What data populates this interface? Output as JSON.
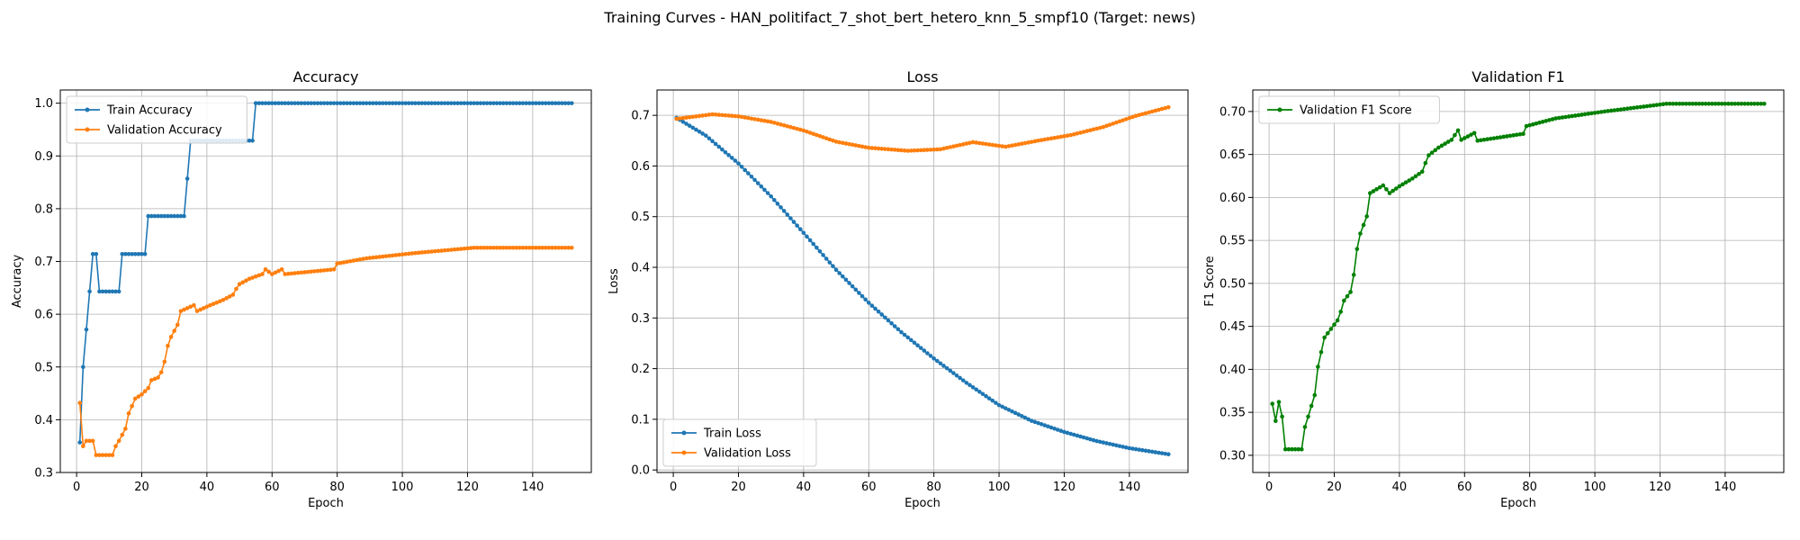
{
  "suptitle": "Training Curves - HAN_politifact_7_shot_bert_hetero_knn_5_smpf10 (Target: news)",
  "colors": {
    "blue": "#1f77b4",
    "orange": "#ff7f0e",
    "green": "#008000",
    "grid": "#b0b0b0"
  },
  "chart_data": [
    {
      "type": "line",
      "title": "Accuracy",
      "xlabel": "Epoch",
      "ylabel": "Accuracy",
      "xlim": [
        -5,
        158
      ],
      "ylim": [
        0.3,
        1.025
      ],
      "xticks": [
        0,
        20,
        40,
        60,
        80,
        100,
        120,
        140
      ],
      "yticks": [
        0.3,
        0.4,
        0.5,
        0.6,
        0.7,
        0.8,
        0.9,
        1.0
      ],
      "grid": true,
      "legend_position": "upper-left",
      "series": [
        {
          "name": "Train Accuracy",
          "color": "#1f77b4",
          "segments": [
            [
              1,
              0.357
            ],
            [
              2,
              0.5
            ],
            [
              3,
              0.571
            ],
            [
              4,
              0.643
            ],
            [
              5,
              0.714
            ],
            [
              6,
              0.714
            ],
            [
              7,
              0.643
            ],
            [
              13,
              0.643
            ],
            [
              14,
              0.714
            ],
            [
              21,
              0.714
            ],
            [
              22,
              0.786
            ],
            [
              33,
              0.786
            ],
            [
              34,
              0.857
            ],
            [
              35,
              0.929
            ],
            [
              54,
              0.929
            ],
            [
              55,
              1.0
            ],
            [
              152,
              1.0
            ]
          ]
        },
        {
          "name": "Validation Accuracy",
          "color": "#ff7f0e",
          "segments": [
            [
              1,
              0.432
            ],
            [
              2,
              0.35
            ],
            [
              3,
              0.36
            ],
            [
              5,
              0.36
            ],
            [
              6,
              0.333
            ],
            [
              11,
              0.333
            ],
            [
              12,
              0.35
            ],
            [
              13,
              0.36
            ],
            [
              15,
              0.383
            ],
            [
              16,
              0.412
            ],
            [
              18,
              0.44
            ],
            [
              20,
              0.448
            ],
            [
              22,
              0.46
            ],
            [
              23,
              0.475
            ],
            [
              25,
              0.48
            ],
            [
              26,
              0.49
            ],
            [
              27,
              0.51
            ],
            [
              28,
              0.54
            ],
            [
              29,
              0.557
            ],
            [
              31,
              0.58
            ],
            [
              32,
              0.606
            ],
            [
              36,
              0.617
            ],
            [
              37,
              0.606
            ],
            [
              41,
              0.617
            ],
            [
              45,
              0.627
            ],
            [
              48,
              0.637
            ],
            [
              49,
              0.648
            ],
            [
              50,
              0.657
            ],
            [
              53,
              0.667
            ],
            [
              57,
              0.676
            ],
            [
              58,
              0.685
            ],
            [
              60,
              0.676
            ],
            [
              63,
              0.685
            ],
            [
              64,
              0.676
            ],
            [
              79,
              0.685
            ],
            [
              80,
              0.696
            ],
            [
              89,
              0.706
            ],
            [
              104,
              0.716
            ],
            [
              122,
              0.726
            ],
            [
              152,
              0.726
            ]
          ]
        }
      ]
    },
    {
      "type": "line",
      "title": "Loss",
      "xlabel": "Epoch",
      "ylabel": "Loss",
      "xlim": [
        -5,
        158
      ],
      "ylim": [
        -0.005,
        0.75
      ],
      "xticks": [
        0,
        20,
        40,
        60,
        80,
        100,
        120,
        140
      ],
      "yticks": [
        0.0,
        0.1,
        0.2,
        0.3,
        0.4,
        0.5,
        0.6,
        0.7
      ],
      "grid": true,
      "legend_position": "lower-left",
      "series": [
        {
          "name": "Train Loss",
          "color": "#1f77b4",
          "segments": [
            [
              1,
              0.695
            ],
            [
              10,
              0.66
            ],
            [
              20,
              0.605
            ],
            [
              30,
              0.54
            ],
            [
              40,
              0.468
            ],
            [
              50,
              0.395
            ],
            [
              60,
              0.33
            ],
            [
              70,
              0.272
            ],
            [
              80,
              0.22
            ],
            [
              90,
              0.172
            ],
            [
              100,
              0.128
            ],
            [
              110,
              0.097
            ],
            [
              120,
              0.075
            ],
            [
              130,
              0.057
            ],
            [
              140,
              0.043
            ],
            [
              152,
              0.031
            ]
          ]
        },
        {
          "name": "Validation Loss",
          "color": "#ff7f0e",
          "segments": [
            [
              1,
              0.693
            ],
            [
              12,
              0.702
            ],
            [
              20,
              0.698
            ],
            [
              30,
              0.687
            ],
            [
              40,
              0.67
            ],
            [
              50,
              0.648
            ],
            [
              60,
              0.636
            ],
            [
              72,
              0.63
            ],
            [
              82,
              0.633
            ],
            [
              92,
              0.647
            ],
            [
              102,
              0.638
            ],
            [
              112,
              0.65
            ],
            [
              122,
              0.661
            ],
            [
              132,
              0.677
            ],
            [
              142,
              0.699
            ],
            [
              152,
              0.716
            ]
          ]
        }
      ]
    },
    {
      "type": "line",
      "title": "Validation F1",
      "xlabel": "Epoch",
      "ylabel": "F1 Score",
      "xlim": [
        -5,
        158
      ],
      "ylim": [
        0.28,
        0.725
      ],
      "xticks": [
        0,
        20,
        40,
        60,
        80,
        100,
        120,
        140
      ],
      "yticks": [
        0.3,
        0.35,
        0.4,
        0.45,
        0.5,
        0.55,
        0.6,
        0.65,
        0.7
      ],
      "grid": true,
      "legend_position": "upper-left",
      "series": [
        {
          "name": "Validation F1 Score",
          "color": "#008000",
          "segments": [
            [
              1,
              0.36
            ],
            [
              2,
              0.34
            ],
            [
              3,
              0.362
            ],
            [
              4,
              0.345
            ],
            [
              5,
              0.307
            ],
            [
              10,
              0.307
            ],
            [
              11,
              0.333
            ],
            [
              12,
              0.345
            ],
            [
              14,
              0.37
            ],
            [
              15,
              0.403
            ],
            [
              17,
              0.437
            ],
            [
              19,
              0.447
            ],
            [
              21,
              0.457
            ],
            [
              22,
              0.467
            ],
            [
              23,
              0.48
            ],
            [
              25,
              0.49
            ],
            [
              26,
              0.51
            ],
            [
              27,
              0.54
            ],
            [
              28,
              0.558
            ],
            [
              30,
              0.578
            ],
            [
              31,
              0.605
            ],
            [
              35,
              0.614
            ],
            [
              37,
              0.605
            ],
            [
              40,
              0.613
            ],
            [
              44,
              0.622
            ],
            [
              47,
              0.63
            ],
            [
              48,
              0.64
            ],
            [
              49,
              0.649
            ],
            [
              52,
              0.658
            ],
            [
              56,
              0.667
            ],
            [
              58,
              0.678
            ],
            [
              59,
              0.667
            ],
            [
              63,
              0.675
            ],
            [
              64,
              0.666
            ],
            [
              78,
              0.674
            ],
            [
              79,
              0.683
            ],
            [
              88,
              0.692
            ],
            [
              103,
              0.7
            ],
            [
              122,
              0.709
            ],
            [
              152,
              0.709
            ]
          ]
        }
      ]
    }
  ]
}
